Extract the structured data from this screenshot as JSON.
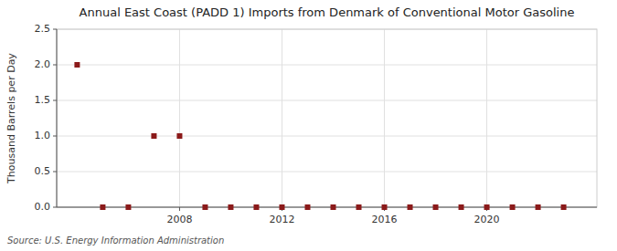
{
  "chart_data": {
    "type": "scatter",
    "title": "Annual East Coast (PADD 1) Imports from Denmark of Conventional Motor Gasoline",
    "y_label": "Thousand Barrels per Day",
    "annotation": "Source: U.S. Energy Information Administration",
    "x": [
      2004,
      2005,
      2006,
      2007,
      2008,
      2009,
      2010,
      2011,
      2012,
      2013,
      2014,
      2015,
      2016,
      2017,
      2018,
      2019,
      2020,
      2021,
      2022,
      2023
    ],
    "values": [
      2.0,
      0.0,
      0.0,
      1.0,
      1.0,
      0.0,
      0.0,
      0.0,
      0.0,
      0.0,
      0.0,
      0.0,
      0.0,
      0.0,
      0.0,
      0.0,
      0.0,
      0.0,
      0.0,
      0.0
    ],
    "color": "#8b1a1a",
    "marker": "square",
    "xlim": [
      2003.2,
      2024.3
    ],
    "xticks": [
      2008,
      2012,
      2016,
      2020
    ],
    "ylim": [
      0,
      2.5
    ],
    "yticks": [
      {
        "value": 0.0,
        "label": "0.0"
      },
      {
        "value": 0.5,
        "label": "0.5"
      },
      {
        "value": 1.0,
        "label": "1.0"
      },
      {
        "value": 1.5,
        "label": "1.5"
      },
      {
        "value": 2.0,
        "label": "2.0"
      },
      {
        "value": 2.5,
        "label": "2.5"
      }
    ],
    "grid": true
  }
}
